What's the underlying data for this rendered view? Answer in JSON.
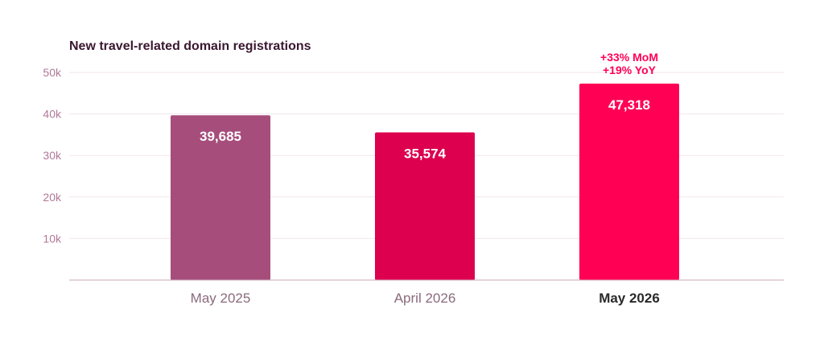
{
  "chart_data": {
    "type": "bar",
    "title": "New travel-related domain registrations",
    "categories": [
      "May 2025",
      "April 2026",
      "May 2026"
    ],
    "values": [
      39685,
      35574,
      47318
    ],
    "value_labels": [
      "39,685",
      "35,574",
      "47,318"
    ],
    "highlight_category": "May 2026",
    "annotation": {
      "lines": [
        "+33% MoM",
        "+19% YoY"
      ],
      "category": "May 2026"
    },
    "yticks": [
      {
        "value": 10000,
        "label": "10k"
      },
      {
        "value": 20000,
        "label": "20k"
      },
      {
        "value": 30000,
        "label": "30k"
      },
      {
        "value": 40000,
        "label": "40k"
      },
      {
        "value": 50000,
        "label": "50k"
      }
    ],
    "ylim": [
      0,
      50000
    ],
    "grid": true,
    "xlabel": "",
    "ylabel": "",
    "colors": {
      "bars": [
        "#a64d7c",
        "#dc004f",
        "#ff0055"
      ],
      "title": "#3a1830",
      "axis_text": "#b07898",
      "category_text": "#8a6a7e",
      "highlight_text": "#2a2a2a",
      "annotation": "#ff0055",
      "grid": "#f2e6ec",
      "baseline": "#c9a9ba",
      "value_text": "#ffffff"
    }
  }
}
